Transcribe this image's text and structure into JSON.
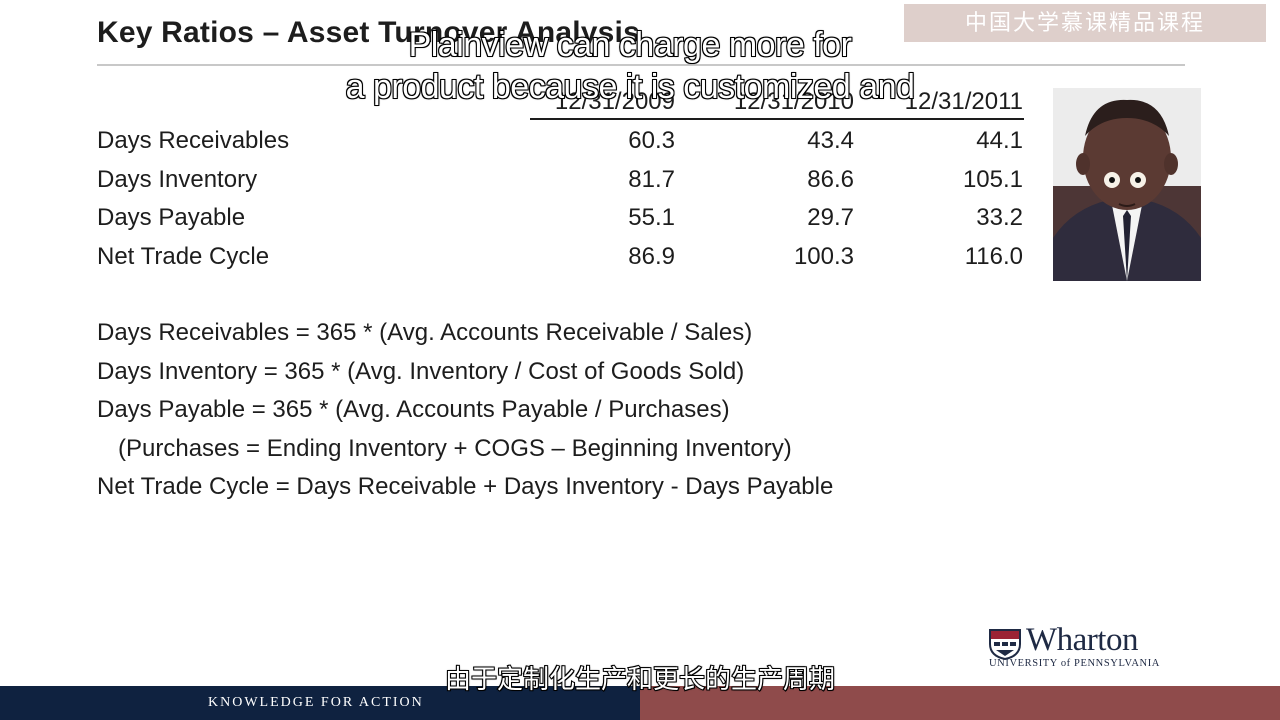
{
  "slide": {
    "title": "Key Ratios – Asset Turnover Analysis",
    "columns": [
      "12/31/2009",
      "12/31/2010",
      "12/31/2011"
    ],
    "rows": [
      {
        "label": "Days Receivables",
        "values": [
          "60.3",
          "43.4",
          "44.1"
        ]
      },
      {
        "label": "Days Inventory",
        "values": [
          "81.7",
          "86.6",
          "105.1"
        ]
      },
      {
        "label": "Days Payable",
        "values": [
          "55.1",
          "29.7",
          "33.2"
        ]
      },
      {
        "label": "Net Trade Cycle",
        "values": [
          "86.9",
          "100.3",
          "116.0"
        ]
      }
    ],
    "formulas": [
      "Days Receivables =  365 * (Avg. Accounts Receivable / Sales)",
      "Days Inventory = 365 * (Avg. Inventory / Cost of Goods Sold)",
      "Days Payable = 365 * (Avg. Accounts Payable / Purchases)",
      "(Purchases = Ending Inventory + COGS – Beginning Inventory)",
      "Net Trade Cycle = Days Receivable + Days Inventory - Days Payable"
    ]
  },
  "subtitles": {
    "english_line1": "Plainview can charge more for",
    "english_line2": "a product because it is customized and",
    "chinese": "由于定制化生产和更长的生产周期"
  },
  "watermark": "中国大学慕课精品课程",
  "branding": {
    "logo_name": "Wharton",
    "logo_university": "UNIVERSITY of PENNSYLVANIA",
    "footer_tagline": "KNOWLEDGE FOR ACTION"
  },
  "colors": {
    "footer_navy": "#0f2240",
    "footer_maroon": "#8f4b4b",
    "logo_navy": "#1f2a44",
    "shield_red": "#9b2335"
  }
}
